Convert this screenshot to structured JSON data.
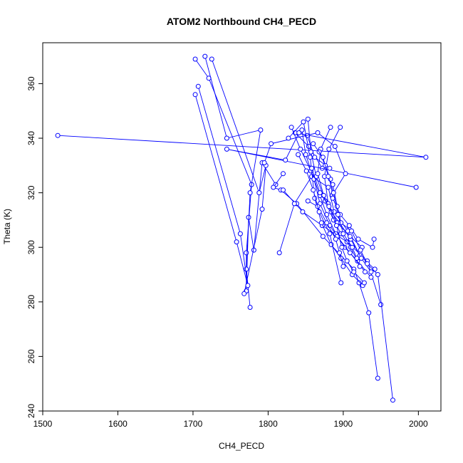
{
  "chart_data": {
    "type": "line",
    "title": "ATOM2 Northbound CH4_PECD",
    "xlabel": "CH4_PECD",
    "ylabel": "Theta (K)",
    "xlim": [
      1500,
      2030
    ],
    "ylim": [
      240,
      375
    ],
    "x_ticks": [
      1500,
      1600,
      1700,
      1800,
      1900,
      2000
    ],
    "y_ticks": [
      240,
      260,
      280,
      300,
      320,
      340,
      360
    ],
    "grid": false,
    "legend": "none",
    "series_color": "#0000ff",
    "marker": "open-circle",
    "series": [
      {
        "points": [
          [
            1703,
            369
          ],
          [
            1721,
            362
          ],
          [
            1778,
            323
          ],
          [
            1771,
            298
          ],
          [
            1771,
            284
          ],
          [
            1774,
            311
          ],
          [
            1781,
            299
          ],
          [
            1792,
            331
          ],
          [
            1810,
            323
          ]
        ]
      },
      {
        "points": [
          [
            1716,
            370
          ],
          [
            1745,
            340
          ],
          [
            1790,
            343
          ],
          [
            1776,
            320
          ],
          [
            1771,
            292
          ],
          [
            1776,
            278
          ]
        ]
      },
      {
        "points": [
          [
            1725,
            369
          ],
          [
            1788,
            320
          ],
          [
            1797,
            330
          ],
          [
            1792,
            314
          ],
          [
            1768,
            283
          ]
        ]
      },
      {
        "points": [
          [
            1707,
            359
          ],
          [
            1763,
            305
          ],
          [
            1773,
            286
          ],
          [
            1758,
            302
          ],
          [
            1703,
            356
          ]
        ]
      },
      {
        "points": [
          [
            1520,
            341
          ],
          [
            2010,
            333
          ],
          [
            1836,
            342
          ],
          [
            1854,
            337
          ],
          [
            1872,
            329
          ]
        ]
      },
      {
        "points": [
          [
            1997,
            322
          ],
          [
            1745,
            336
          ],
          [
            1823,
            332
          ],
          [
            1841,
            342
          ],
          [
            1852,
            341
          ],
          [
            1862,
            333
          ],
          [
            1882,
            329
          ]
        ]
      },
      {
        "points": [
          [
            1795,
            331
          ],
          [
            1804,
            338
          ],
          [
            1866,
            342
          ],
          [
            1889,
            337
          ],
          [
            1903,
            327
          ],
          [
            1885,
            319
          ]
        ]
      },
      {
        "points": [
          [
            1820,
            327
          ],
          [
            1807,
            322
          ],
          [
            1817,
            321
          ],
          [
            1838,
            316
          ],
          [
            1873,
            304
          ],
          [
            1914,
            292
          ],
          [
            1921,
            287
          ],
          [
            1934,
            276
          ],
          [
            1946,
            252
          ]
        ]
      },
      {
        "points": [
          [
            1820,
            321
          ],
          [
            1846,
            313
          ],
          [
            1872,
            308
          ],
          [
            1905,
            302
          ],
          [
            1932,
            295
          ],
          [
            1950,
            279
          ]
        ]
      },
      {
        "points": [
          [
            1815,
            298
          ],
          [
            1835,
            316
          ],
          [
            1858,
            326
          ],
          [
            1880,
            322
          ],
          [
            1888,
            313
          ],
          [
            1906,
            306
          ],
          [
            1922,
            297
          ],
          [
            1942,
            292
          ]
        ]
      },
      {
        "points": [
          [
            1827,
            340
          ],
          [
            1847,
            346
          ],
          [
            1856,
            333
          ],
          [
            1862,
            318
          ],
          [
            1871,
            309
          ],
          [
            1884,
            301
          ],
          [
            1897,
            296
          ],
          [
            1912,
            290
          ],
          [
            1926,
            286
          ]
        ]
      },
      {
        "points": [
          [
            1831,
            344
          ],
          [
            1843,
            336
          ],
          [
            1857,
            328
          ],
          [
            1869,
            319
          ],
          [
            1878,
            312
          ],
          [
            1890,
            305
          ],
          [
            1902,
            300
          ],
          [
            1919,
            295
          ],
          [
            1937,
            289
          ]
        ]
      },
      {
        "points": [
          [
            1845,
            343
          ],
          [
            1850,
            334
          ],
          [
            1861,
            325
          ],
          [
            1869,
            316
          ],
          [
            1882,
            308
          ],
          [
            1892,
            304
          ],
          [
            1909,
            298
          ],
          [
            1929,
            291
          ]
        ]
      },
      {
        "points": [
          [
            1853,
            347
          ],
          [
            1857,
            335
          ],
          [
            1864,
            326
          ],
          [
            1876,
            317
          ],
          [
            1887,
            310
          ],
          [
            1897,
            305
          ],
          [
            1910,
            300
          ],
          [
            1922,
            293
          ]
        ]
      },
      {
        "points": [
          [
            1883,
            344
          ],
          [
            1870,
            336
          ],
          [
            1866,
            327
          ],
          [
            1874,
            319
          ],
          [
            1884,
            313
          ],
          [
            1895,
            309
          ],
          [
            1910,
            303
          ],
          [
            1924,
            296
          ],
          [
            1937,
            291
          ]
        ]
      },
      {
        "points": [
          [
            1896,
            344
          ],
          [
            1881,
            336
          ],
          [
            1875,
            326
          ],
          [
            1880,
            316
          ],
          [
            1892,
            309
          ],
          [
            1909,
            304
          ],
          [
            1925,
            300
          ]
        ]
      },
      {
        "points": [
          [
            1858,
            329
          ],
          [
            1869,
            320
          ],
          [
            1881,
            315
          ],
          [
            1891,
            308
          ],
          [
            1898,
            300
          ],
          [
            1905,
            295
          ],
          [
            1914,
            291
          ],
          [
            1928,
            287
          ]
        ]
      },
      {
        "points": [
          [
            1853,
            317
          ],
          [
            1866,
            315
          ],
          [
            1878,
            309
          ],
          [
            1890,
            303
          ],
          [
            1895,
            298
          ],
          [
            1900,
            293
          ]
        ]
      },
      {
        "points": [
          [
            1868,
            335
          ],
          [
            1876,
            330
          ],
          [
            1883,
            325
          ],
          [
            1886,
            318
          ],
          [
            1896,
            312
          ],
          [
            1908,
            308
          ],
          [
            1920,
            303
          ],
          [
            1939,
            300
          ],
          [
            1941,
            303
          ]
        ]
      },
      {
        "points": [
          [
            1886,
            323
          ],
          [
            1892,
            315
          ],
          [
            1897,
            309
          ],
          [
            1911,
            306
          ],
          [
            1923,
            299
          ],
          [
            1932,
            294
          ],
          [
            1946,
            290
          ],
          [
            1966,
            244
          ]
        ]
      },
      {
        "points": [
          [
            1840,
            334
          ],
          [
            1851,
            328
          ],
          [
            1860,
            321
          ],
          [
            1868,
            313
          ],
          [
            1882,
            305
          ],
          [
            1897,
            287
          ]
        ]
      },
      {
        "points": [
          [
            1860,
            338
          ],
          [
            1873,
            333
          ],
          [
            1880,
            326
          ],
          [
            1887,
            320
          ],
          [
            1893,
            312
          ],
          [
            1900,
            305
          ],
          [
            1912,
            300
          ],
          [
            1918,
            296
          ]
        ]
      }
    ]
  }
}
